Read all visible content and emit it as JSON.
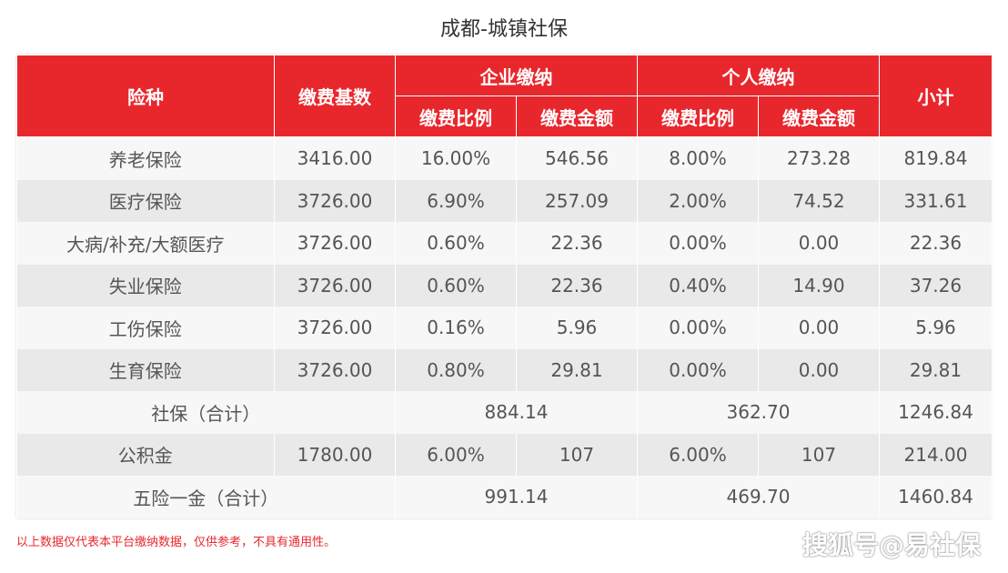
{
  "title": "成都-城镇社保",
  "header": {
    "col_type": "险种",
    "col_base": "缴费基数",
    "group_company": "企业缴纳",
    "group_personal": "个人缴纳",
    "col_subtotal": "小计",
    "sub_rate_c": "缴费比例",
    "sub_amount_c": "缴费金额",
    "sub_rate_p": "缴费比例",
    "sub_amount_p": "缴费金额"
  },
  "rows": [
    {
      "name": "养老保险",
      "base": "3416.00",
      "c_rate": "16.00%",
      "c_amt": "546.56",
      "p_rate": "8.00%",
      "p_amt": "273.28",
      "sub": "819.84"
    },
    {
      "name": "医疗保险",
      "base": "3726.00",
      "c_rate": "6.90%",
      "c_amt": "257.09",
      "p_rate": "2.00%",
      "p_amt": "74.52",
      "sub": "331.61"
    },
    {
      "name": "大病/补充/大额医疗",
      "base": "3726.00",
      "c_rate": "0.60%",
      "c_amt": "22.36",
      "p_rate": "0.00%",
      "p_amt": "0.00",
      "sub": "22.36"
    },
    {
      "name": "失业保险",
      "base": "3726.00",
      "c_rate": "0.60%",
      "c_amt": "22.36",
      "p_rate": "0.40%",
      "p_amt": "14.90",
      "sub": "37.26"
    },
    {
      "name": "工伤保险",
      "base": "3726.00",
      "c_rate": "0.16%",
      "c_amt": "5.96",
      "p_rate": "0.00%",
      "p_amt": "0.00",
      "sub": "5.96"
    },
    {
      "name": "生育保险",
      "base": "3726.00",
      "c_rate": "0.80%",
      "c_amt": "29.81",
      "p_rate": "0.00%",
      "p_amt": "0.00",
      "sub": "29.81"
    }
  ],
  "social_total": {
    "name": "社保（合计）",
    "company": "884.14",
    "personal": "362.70",
    "sub": "1246.84"
  },
  "fund": {
    "name": "公积金",
    "base": "1780.00",
    "c_rate": "6.00%",
    "c_amt": "107",
    "p_rate": "6.00%",
    "p_amt": "107",
    "sub": "214.00"
  },
  "grand_total": {
    "name": "五险一金（合计）",
    "company": "991.14",
    "personal": "469.70",
    "sub": "1460.84"
  },
  "note": "以上数据仅代表本平台缴纳数据，仅供参考，不具有通用性。",
  "watermark": "搜狐号@易社保",
  "colors": {
    "header_red": "#e8272d",
    "row_light": "#f7f7f7",
    "row_dark": "#e9e9e9"
  }
}
